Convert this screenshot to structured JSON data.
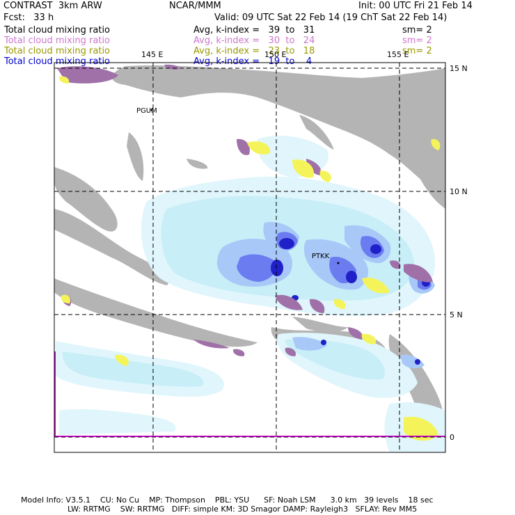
{
  "header": {
    "title_left": "CONTRAST  3km ARW",
    "center": "NCAR/MMM",
    "init": "Init: 00 UTC Fri 21 Feb 14",
    "fcst": "Fcst:   33 h",
    "valid": "Valid: 09 UTC Sat 22 Feb 14 (19 ChT Sat 22 Feb 14)"
  },
  "fields": [
    {
      "name": "Total cloud mixing ratio",
      "avg": "Avg, k-index =   39  to   31",
      "sm": "sm= 2",
      "color": "#000000"
    },
    {
      "name": "Total cloud mixing ratio",
      "avg": "Avg, k-index =   30  to   24",
      "sm": "sm= 2",
      "color": "#cc77cc"
    },
    {
      "name": "Total cloud mixing ratio",
      "avg": "Avg, k-index =   23  to   18",
      "sm": "sm= 2",
      "color": "#999900"
    },
    {
      "name": "Total cloud mixing ratio",
      "avg": "Avg, k-index =   19  to    4",
      "sm": "",
      "color": "#0000cc"
    }
  ],
  "axes": {
    "lon_labels": [
      "145 E",
      "150 E",
      "155 E"
    ],
    "lat_labels": [
      "15 N",
      "10 N",
      "5 N",
      "0"
    ]
  },
  "stations": [
    "PGUM",
    "PTKK"
  ],
  "footer": {
    "line1": "Model Info: V3.5.1    CU: No Cu    MP: Thompson    PBL: YSU      SF: Noah LSM      3.0 km   39 levels    18 sec",
    "line2": "LW: RRTMG    SW: RRTMG   DIFF: simple KM: 3D Smagor DAMP: Rayleigh3   SFLAY: Rev MM5"
  },
  "colors": {
    "grey_cloud": "#b4b4b4",
    "light_blue": "#c8eef8",
    "mid_blue": "#a8c8f8",
    "blue": "#6a7cf0",
    "dark_blue": "#2020c8",
    "magenta": "#a070a8",
    "yellow": "#f4f45a",
    "boundary": "#cc00cc"
  }
}
